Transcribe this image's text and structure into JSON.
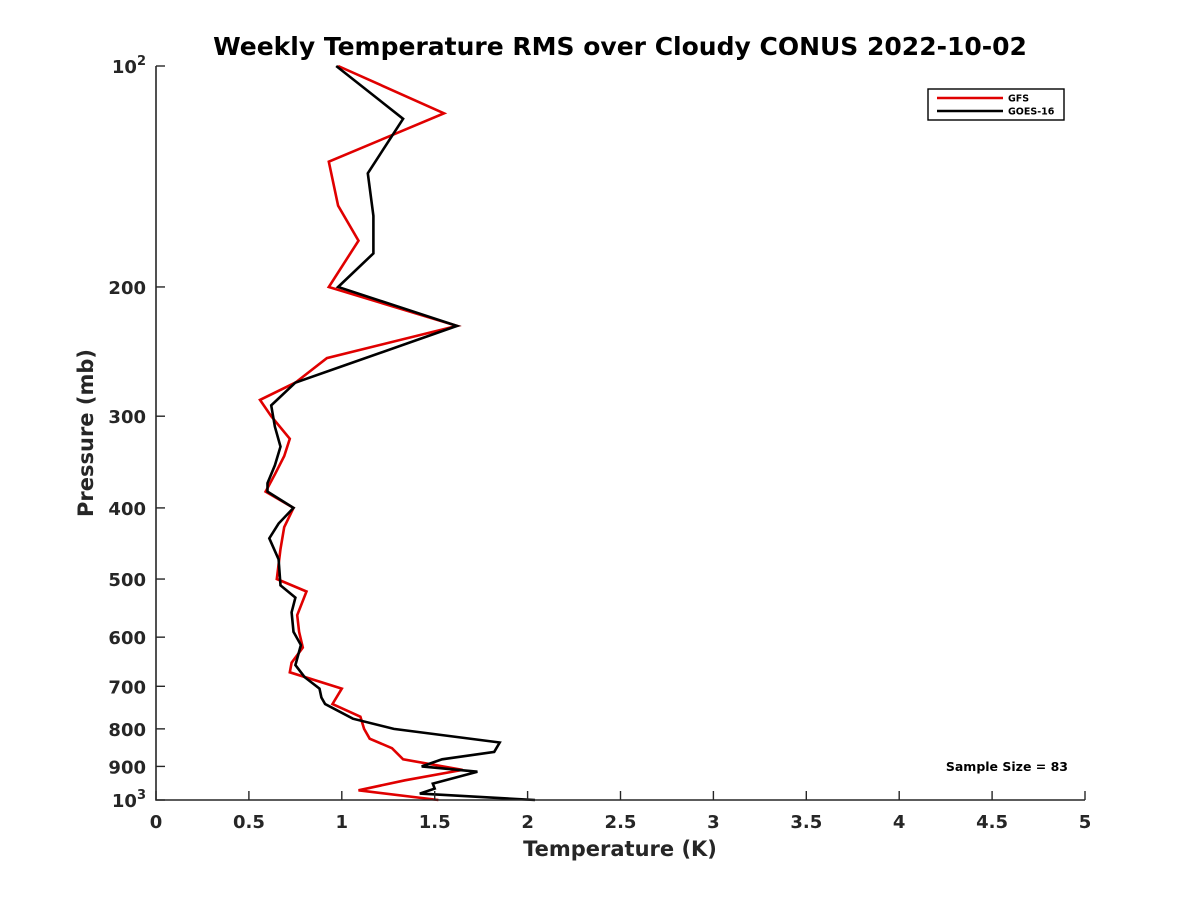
{
  "chart_data": {
    "type": "line",
    "title": "Weekly Temperature RMS over Cloudy CONUS 2022-10-02",
    "xlabel": "Temperature (K)",
    "ylabel": "Pressure (mb)",
    "xlim": [
      0,
      5
    ],
    "ylim": [
      100,
      1000
    ],
    "y_scale": "log",
    "y_reversed": true,
    "x_ticks": [
      "0",
      "0.5",
      "1",
      "1.5",
      "2",
      "2.5",
      "3",
      "3.5",
      "4",
      "4.5",
      "5"
    ],
    "y_ticks": [
      {
        "value": 100,
        "base": "10",
        "exp": "2"
      },
      {
        "value": 200,
        "label": "200"
      },
      {
        "value": 300,
        "label": "300"
      },
      {
        "value": 400,
        "label": "400"
      },
      {
        "value": 500,
        "label": "500"
      },
      {
        "value": 600,
        "label": "600"
      },
      {
        "value": 700,
        "label": "700"
      },
      {
        "value": 800,
        "label": "800"
      },
      {
        "value": 900,
        "label": "900"
      },
      {
        "value": 1000,
        "base": "10",
        "exp": "3"
      }
    ],
    "grid": false,
    "legend_position": "top-right",
    "annotation": "Sample Size = 83",
    "series": [
      {
        "name": "GFS",
        "color": "#e00000",
        "points": [
          [
            0.98,
            100
          ],
          [
            1.55,
            116
          ],
          [
            0.93,
            135
          ],
          [
            0.98,
            155
          ],
          [
            1.09,
            173
          ],
          [
            0.93,
            200
          ],
          [
            1.62,
            226
          ],
          [
            0.92,
            250
          ],
          [
            0.75,
            270
          ],
          [
            0.56,
            285
          ],
          [
            0.62,
            300
          ],
          [
            0.72,
            322
          ],
          [
            0.69,
            340
          ],
          [
            0.64,
            360
          ],
          [
            0.59,
            380
          ],
          [
            0.74,
            400
          ],
          [
            0.69,
            425
          ],
          [
            0.67,
            455
          ],
          [
            0.65,
            500
          ],
          [
            0.81,
            520
          ],
          [
            0.76,
            560
          ],
          [
            0.77,
            590
          ],
          [
            0.79,
            620
          ],
          [
            0.73,
            650
          ],
          [
            0.72,
            670
          ],
          [
            1.0,
            705
          ],
          [
            0.95,
            740
          ],
          [
            1.1,
            770
          ],
          [
            1.12,
            800
          ],
          [
            1.15,
            825
          ],
          [
            1.27,
            850
          ],
          [
            1.33,
            880
          ],
          [
            1.65,
            910
          ],
          [
            1.34,
            940
          ],
          [
            1.09,
            970
          ],
          [
            1.52,
            1000
          ]
        ]
      },
      {
        "name": "GOES-16",
        "color": "#000000",
        "points": [
          [
            0.97,
            100
          ],
          [
            1.33,
            118
          ],
          [
            1.14,
            140
          ],
          [
            1.17,
            160
          ],
          [
            1.17,
            180
          ],
          [
            0.98,
            200
          ],
          [
            1.62,
            226
          ],
          [
            1.03,
            255
          ],
          [
            0.75,
            270
          ],
          [
            0.62,
            290
          ],
          [
            0.64,
            310
          ],
          [
            0.67,
            330
          ],
          [
            0.64,
            350
          ],
          [
            0.6,
            370
          ],
          [
            0.6,
            380
          ],
          [
            0.74,
            400
          ],
          [
            0.66,
            420
          ],
          [
            0.61,
            440
          ],
          [
            0.66,
            470
          ],
          [
            0.67,
            510
          ],
          [
            0.75,
            530
          ],
          [
            0.73,
            555
          ],
          [
            0.74,
            590
          ],
          [
            0.78,
            615
          ],
          [
            0.75,
            655
          ],
          [
            0.8,
            680
          ],
          [
            0.88,
            705
          ],
          [
            0.89,
            725
          ],
          [
            0.91,
            740
          ],
          [
            1.06,
            775
          ],
          [
            1.28,
            800
          ],
          [
            1.85,
            835
          ],
          [
            1.82,
            860
          ],
          [
            1.54,
            880
          ],
          [
            1.43,
            900
          ],
          [
            1.73,
            915
          ],
          [
            1.49,
            950
          ],
          [
            1.5,
            965
          ],
          [
            1.42,
            980
          ],
          [
            2.04,
            1000
          ]
        ]
      }
    ]
  }
}
